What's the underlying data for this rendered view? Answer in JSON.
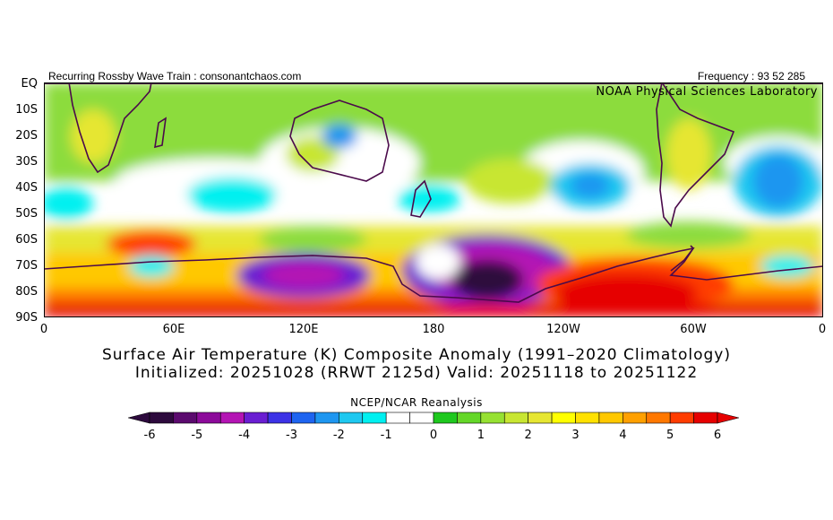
{
  "header": {
    "left": "Recurring Rossby Wave Train : consonantchaos.com",
    "right": "Frequency : 93 52 285",
    "lab": "NOAA Physical Sciences Laboratory"
  },
  "map": {
    "projection": "cylindrical",
    "region": "Southern Hemisphere",
    "lat_labels": [
      "EQ",
      "10S",
      "20S",
      "30S",
      "40S",
      "50S",
      "60S",
      "70S",
      "80S",
      "90S"
    ],
    "lon_labels": [
      "0",
      "60E",
      "120E",
      "180",
      "120W",
      "60W",
      "0"
    ],
    "anomaly_features": [
      {
        "name": "cold-core-pacific-sector",
        "lon": 200,
        "lat": -75,
        "value": -6
      },
      {
        "name": "cold-ross-sea-east-antarctica",
        "lon": 105,
        "lat": -75,
        "value": -4
      },
      {
        "name": "warm-west-antarctica",
        "lon": 265,
        "lat": -77,
        "value": 6
      },
      {
        "name": "warm-south-indian-ocean",
        "lon": 45,
        "lat": -62,
        "value": 5
      },
      {
        "name": "cold-south-pacific",
        "lon": 243,
        "lat": -40,
        "value": -2
      },
      {
        "name": "cold-south-atlantic",
        "lon": 340,
        "lat": -35,
        "value": -2
      },
      {
        "name": "cold-south-australia",
        "lon": 135,
        "lat": -20,
        "value": -2
      }
    ]
  },
  "titles": {
    "line1": "Surface Air Temperature (K) Composite Anomaly (1991–2020 Climatology)",
    "line2": "Initialized: 20251028 (RRWT 2125d) Valid: 20251118 to 20251122"
  },
  "colorbar": {
    "title": "NCEP/NCAR Reanalysis",
    "labels": [
      "-6",
      "-5",
      "-4",
      "-3",
      "-2",
      "-1",
      "0",
      "1",
      "2",
      "3",
      "4",
      "5",
      "6"
    ],
    "colors": [
      "#2d0a3d",
      "#5b0a6e",
      "#8c0a9a",
      "#b414b4",
      "#6a1ed2",
      "#3c32e6",
      "#1e64f0",
      "#1e96f0",
      "#1ec8f0",
      "#00f0f0",
      "#ffffff",
      "#ffffff",
      "#1ec81e",
      "#64d728",
      "#96e132",
      "#c8e632",
      "#e6e632",
      "#ffff00",
      "#ffe100",
      "#ffc800",
      "#ffa000",
      "#ff7800",
      "#ff3c00",
      "#e60000"
    ],
    "min_arrow": "#2d0a3d",
    "max_arrow": "#e60000"
  }
}
